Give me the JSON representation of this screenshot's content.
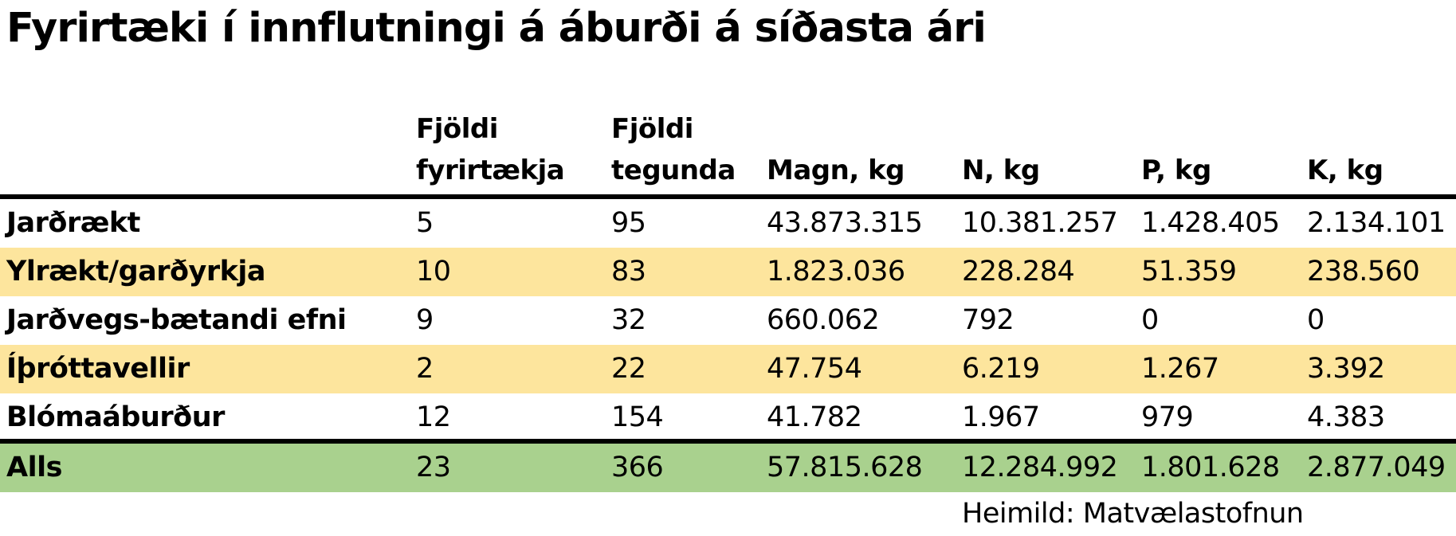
{
  "chart_data": {
    "type": "table",
    "title": "Fyrirtæki í innflutningi á áburði á síðasta ári",
    "columns": [
      "",
      "Fjöldi\nfyrirtækja",
      "Fjöldi\ntegunda",
      "Magn, kg",
      "N, kg",
      "P, kg",
      "K, kg"
    ],
    "rows": [
      {
        "label": "Jarðrækt",
        "values": [
          "5",
          "95",
          "43.873.315",
          "10.381.257",
          "1.428.405",
          "2.134.101"
        ],
        "highlight": false
      },
      {
        "label": "Ylrækt/garðyrkja",
        "values": [
          "10",
          "83",
          "1.823.036",
          "228.284",
          "51.359",
          "238.560"
        ],
        "highlight": true
      },
      {
        "label": "Jarðvegs-bætandi efni",
        "values": [
          "9",
          "32",
          "660.062",
          "792",
          "0",
          "0"
        ],
        "highlight": false
      },
      {
        "label": "Íþróttavellir",
        "values": [
          "2",
          "22",
          "47.754",
          "6.219",
          "1.267",
          "3.392"
        ],
        "highlight": true
      },
      {
        "label": "Blómaáburður",
        "values": [
          "12",
          "154",
          "41.782",
          "1.967",
          "979",
          "4.383"
        ],
        "highlight": false
      }
    ],
    "total": {
      "label": "Alls",
      "values": [
        "23",
        "366",
        "57.815.628",
        "12.284.992",
        "1.801.628",
        "2.877.049"
      ]
    },
    "source": "Heimild: Matvælastofnun"
  },
  "colors": {
    "highlight_row": "#fde59d",
    "total_row": "#a9d18e",
    "rule": "#000000",
    "text": "#000000"
  }
}
